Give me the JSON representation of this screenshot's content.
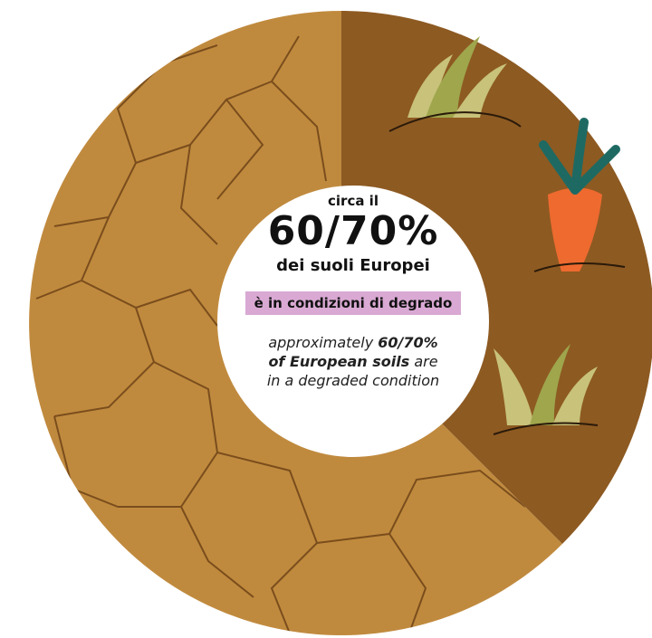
{
  "italian": {
    "intro": "circa il",
    "figure": "60/70%",
    "subject": "dei suoli Europei",
    "highlight": "è in condizioni di degrado"
  },
  "english": {
    "lines": [
      [
        {
          "text": "approximately ",
          "bold": false
        },
        {
          "text": "60/70%",
          "bold": true
        }
      ],
      [
        {
          "text": "of European soils",
          "bold": true
        },
        {
          "text": " are",
          "bold": false
        }
      ],
      [
        {
          "text": "in a degraded condition",
          "bold": false
        }
      ]
    ]
  }
}
